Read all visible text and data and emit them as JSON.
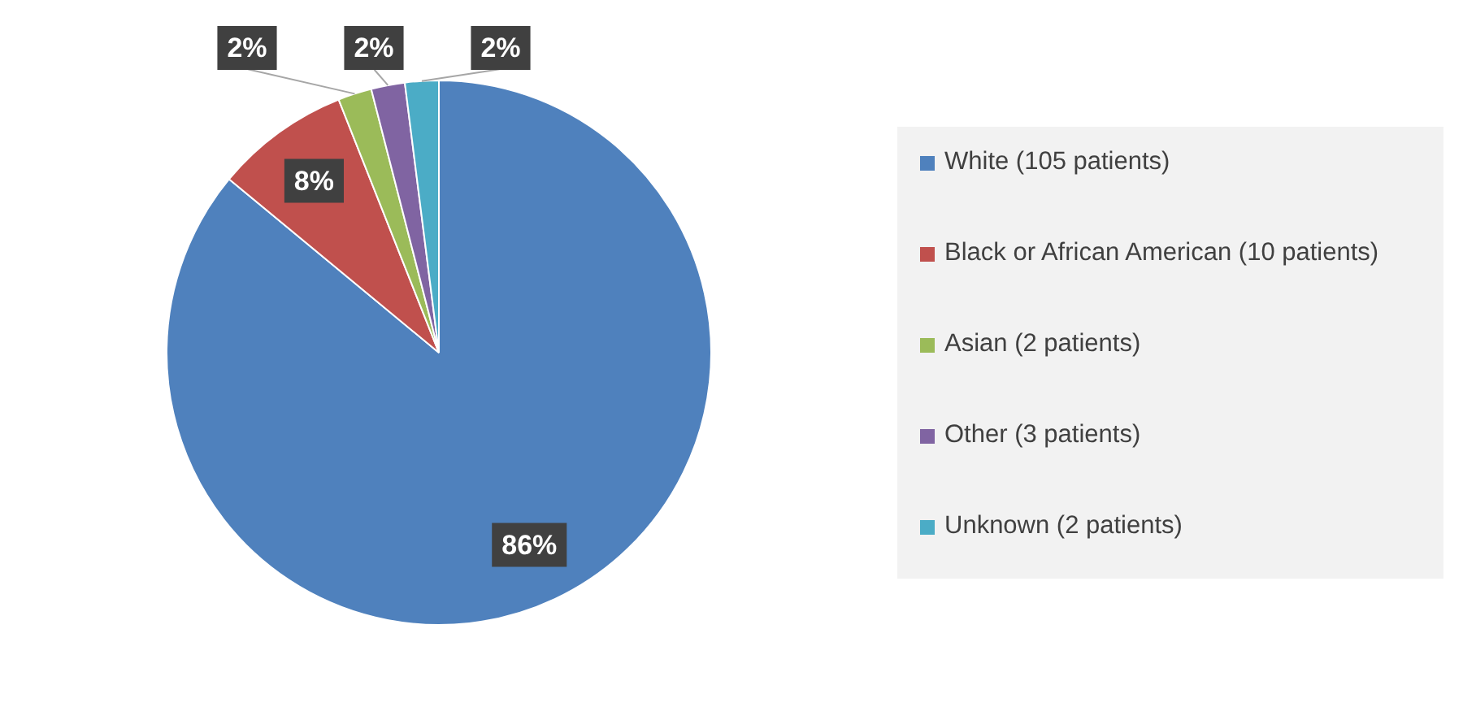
{
  "chart_data": {
    "type": "pie",
    "categories": [
      "White (105 patients)",
      "Black or African American (10 patients)",
      "Asian (2 patients)",
      "Other (3 patients)",
      "Unknown (2 patients)"
    ],
    "values": [
      86,
      8,
      2,
      2,
      2
    ],
    "colors": [
      "#4f81bd",
      "#c0504d",
      "#9bbb59",
      "#8064a2",
      "#4bacc6"
    ],
    "value_labels": [
      "86%",
      "8%",
      "2%",
      "2%",
      "2%"
    ],
    "legend": "right"
  }
}
